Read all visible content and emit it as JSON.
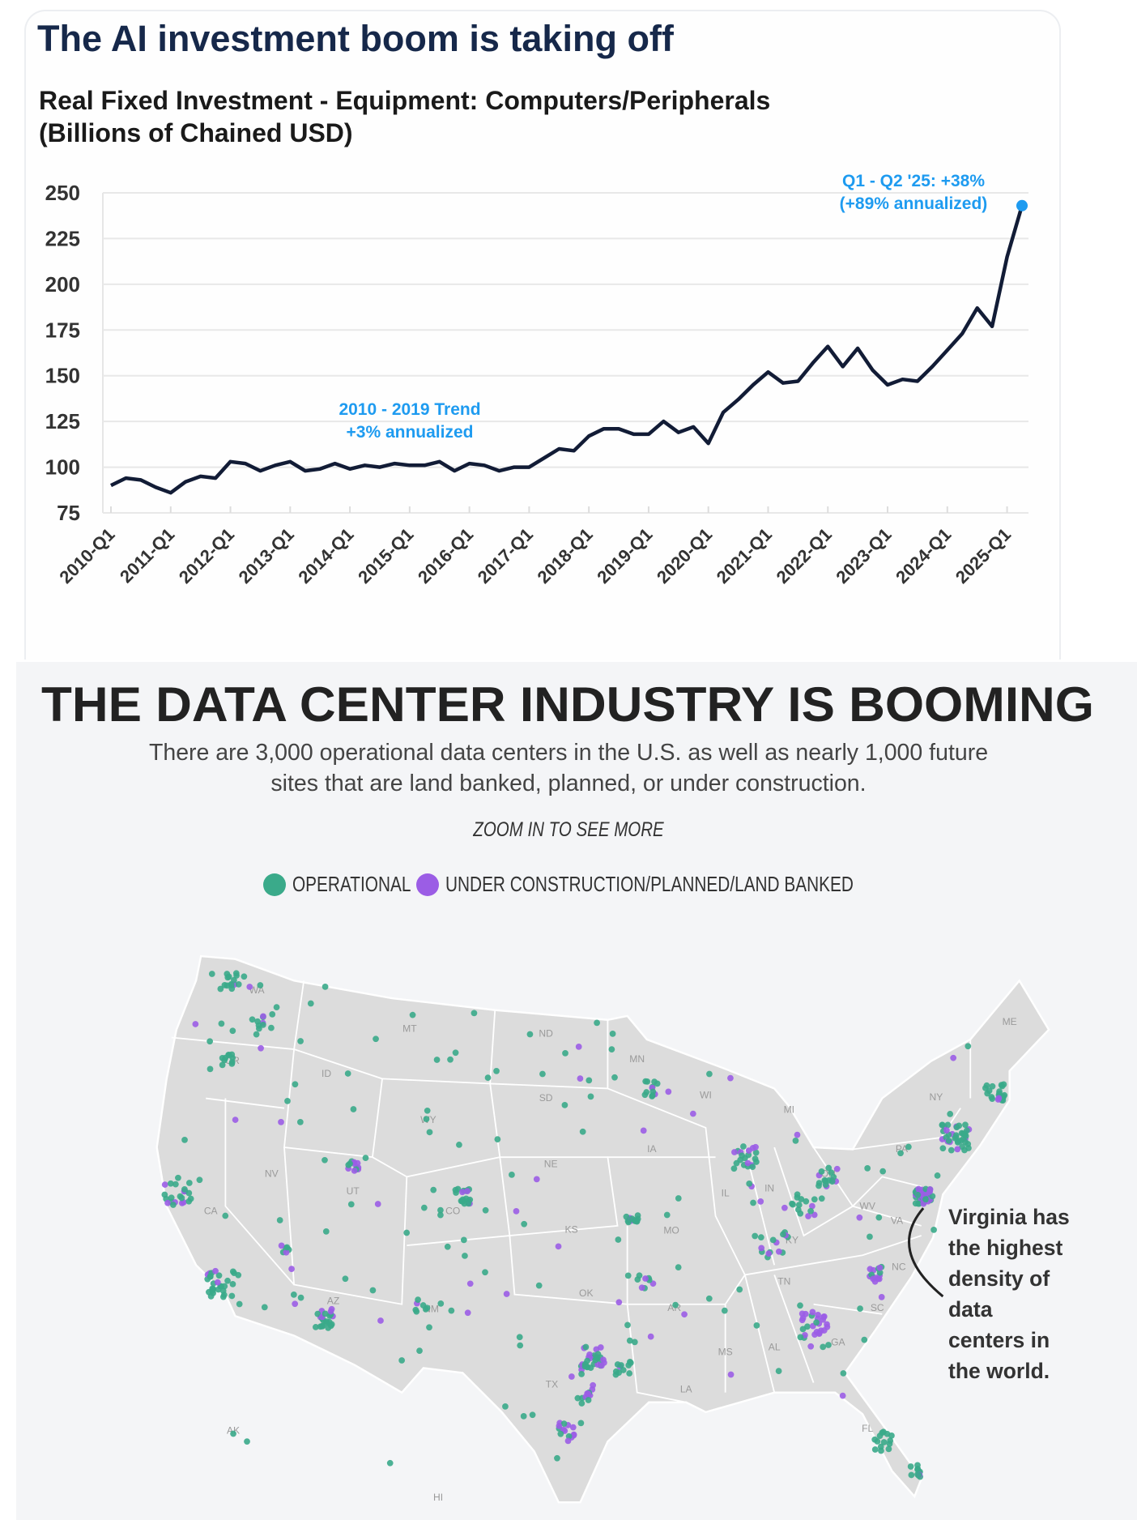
{
  "chart_data": {
    "type": "line",
    "title": "The AI investment boom is taking off",
    "subtitle_lines": [
      "Real Fixed Investment - Equipment: Computers/Peripherals",
      "(Billions of Chained USD)"
    ],
    "xlabel": "",
    "ylabel": "Billions of Chained USD",
    "ylim": [
      75,
      250
    ],
    "yticks": [
      "75",
      "100",
      "125",
      "150",
      "175",
      "200",
      "225",
      "250"
    ],
    "grid": true,
    "xtick_labels": [
      "2010-Q1",
      "2011-Q1",
      "2012-Q1",
      "2013-Q1",
      "2014-Q1",
      "2015-Q1",
      "2016-Q1",
      "2017-Q1",
      "2018-Q1",
      "2019-Q1",
      "2020-Q1",
      "2021-Q1",
      "2022-Q1",
      "2023-Q1",
      "2024-Q1",
      "2025-Q1"
    ],
    "x_start": "2010-Q1",
    "x_end": "2025-Q2",
    "series": [
      {
        "name": "Real Fixed Investment - Computers/Peripherals",
        "color": "#121c36",
        "values": [
          90,
          94,
          93,
          89,
          86,
          92,
          95,
          94,
          103,
          102,
          98,
          101,
          103,
          98,
          99,
          102,
          99,
          101,
          100,
          102,
          101,
          101,
          103,
          98,
          102,
          101,
          98,
          100,
          100,
          105,
          110,
          109,
          117,
          121,
          121,
          118,
          118,
          125,
          119,
          122,
          113,
          130,
          137,
          145,
          152,
          146,
          147,
          157,
          166,
          155,
          165,
          153,
          145,
          148,
          147,
          155,
          164,
          173,
          187,
          177,
          215,
          243
        ]
      }
    ],
    "annotations": [
      {
        "lines": [
          "2010 - 2019 Trend",
          "+3% annualized"
        ],
        "color": "#1e9bf0"
      },
      {
        "lines": [
          "Q1 - Q2 '25: +38%",
          "(+89% annualized)"
        ],
        "color": "#1e9bf0",
        "marker_color": "#1e9bf0"
      }
    ]
  },
  "datacenter": {
    "title": "THE DATA CENTER INDUSTRY IS BOOMING",
    "subtitle_line1": "There are 3,000 operational data centers in the U.S. as well as nearly 1,000 future",
    "subtitle_line2": "sites that are land banked, planned, or under construction.",
    "zoom_note": "ZOOM IN TO SEE MORE",
    "legend": [
      {
        "label": "OPERATIONAL",
        "color": "#3aaa8a"
      },
      {
        "label": "UNDER CONSTRUCTION/PLANNED/LAND BANKED",
        "color": "#9b5de5"
      }
    ],
    "callout_lines": [
      "Virginia has",
      "the highest",
      "density of",
      "data",
      "centers in",
      "the world."
    ],
    "state_labels": [
      "WA",
      "OR",
      "CA",
      "NV",
      "ID",
      "MT",
      "WY",
      "UT",
      "CO",
      "AZ",
      "NM",
      "ND",
      "SD",
      "NE",
      "KS",
      "OK",
      "TX",
      "MN",
      "IA",
      "MO",
      "AR",
      "LA",
      "MS",
      "AL",
      "GA",
      "FL",
      "SC",
      "NC",
      "TN",
      "KY",
      "IL",
      "IN",
      "OH",
      "MI",
      "WI",
      "PA",
      "NY",
      "VA",
      "WV",
      "ME",
      "AK",
      "HI"
    ],
    "counts": {
      "operational": "3,000",
      "future": "1,000"
    }
  }
}
